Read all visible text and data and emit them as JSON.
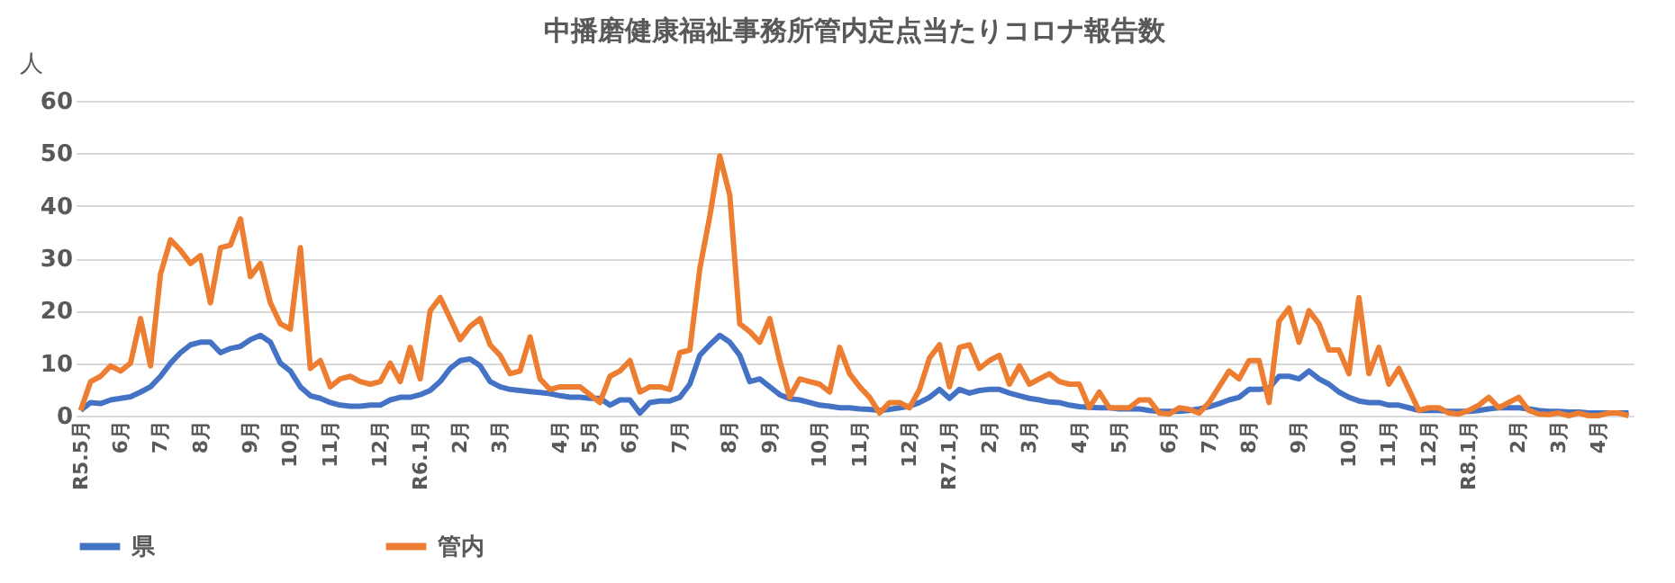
{
  "chart_data": {
    "type": "line",
    "title": "中播磨健康福祉事務所管内定点当たりコロナ報告数",
    "ylabel": "人",
    "categories": [
      "R5.5月",
      null,
      null,
      null,
      "6月",
      null,
      null,
      null,
      "7月",
      null,
      null,
      null,
      "8月",
      null,
      null,
      null,
      null,
      "9月",
      null,
      null,
      null,
      "10月",
      null,
      null,
      null,
      "11月",
      null,
      null,
      null,
      null,
      "12月",
      null,
      null,
      null,
      "R6.1月",
      null,
      null,
      null,
      "2月",
      null,
      null,
      null,
      "3月",
      null,
      null,
      null,
      null,
      null,
      "4月",
      null,
      null,
      "5月",
      null,
      null,
      null,
      "6月",
      null,
      null,
      null,
      null,
      "7月",
      null,
      null,
      null,
      null,
      "8月",
      null,
      null,
      null,
      "9月",
      null,
      null,
      null,
      null,
      "10月",
      null,
      null,
      null,
      "11月",
      null,
      null,
      null,
      null,
      "12月",
      null,
      null,
      null,
      "R7.1月",
      null,
      null,
      null,
      "2月",
      null,
      null,
      null,
      "3月",
      null,
      null,
      null,
      null,
      "4月",
      null,
      null,
      null,
      "5月",
      null,
      null,
      null,
      null,
      "6月",
      null,
      null,
      null,
      "7月",
      null,
      null,
      null,
      "8月",
      null,
      null,
      null,
      null,
      "9月",
      null,
      null,
      null,
      null,
      "10月",
      null,
      null,
      null,
      "11月",
      null,
      null,
      null,
      "12月",
      null,
      null,
      null,
      "R8.1月",
      null,
      null,
      null,
      null,
      "2月",
      null,
      null,
      null,
      "3月",
      null,
      null,
      null,
      "4月",
      null,
      null,
      null
    ],
    "series": [
      {
        "name": "県",
        "color": "#4472c4",
        "values": [
          1,
          2.5,
          2.3,
          3,
          3.3,
          3.6,
          4.5,
          5.5,
          7.5,
          10,
          12,
          13.5,
          14,
          14,
          12,
          12.8,
          13.2,
          14.5,
          15.3,
          14,
          10,
          8.5,
          5.5,
          3.8,
          3.3,
          2.5,
          2,
          1.8,
          1.8,
          2,
          2,
          3,
          3.5,
          3.5,
          4,
          4.8,
          6.5,
          9,
          10.5,
          10.8,
          9.5,
          6.5,
          5.5,
          5,
          4.8,
          4.6,
          4.4,
          4.2,
          3.8,
          3.5,
          3.5,
          3.3,
          3.3,
          2,
          3,
          3,
          0.5,
          2.5,
          2.8,
          2.8,
          3.5,
          6,
          11.5,
          13.5,
          15.3,
          14,
          11.5,
          6.5,
          7,
          5.5,
          4,
          3.2,
          3,
          2.5,
          2,
          1.8,
          1.5,
          1.5,
          1.3,
          1.2,
          1,
          1.2,
          1.5,
          1.8,
          2.5,
          3.5,
          5,
          3.3,
          5,
          4.3,
          4.8,
          5,
          5,
          4.3,
          3.8,
          3.3,
          3,
          2.6,
          2.5,
          2,
          1.7,
          1.6,
          1.5,
          1.5,
          1.3,
          1.3,
          1.3,
          1,
          0.8,
          0.8,
          0.8,
          1,
          1.3,
          1.7,
          2.3,
          3,
          3.5,
          5,
          5,
          5.2,
          7.5,
          7.5,
          7,
          8.5,
          7,
          6,
          4.5,
          3.5,
          2.8,
          2.5,
          2.5,
          2,
          2,
          1.5,
          1,
          1,
          1,
          0.8,
          0.8,
          0.8,
          1,
          1.3,
          1.5,
          1.5,
          1.5,
          1.3,
          1,
          0.8,
          0.8,
          0.7,
          0.7,
          0.5,
          0.5,
          0.5,
          0.5,
          0.5
        ]
      },
      {
        "name": "管内",
        "color": "#ed7d31",
        "values": [
          1,
          6.5,
          7.5,
          9.5,
          8.5,
          10,
          18.5,
          9.5,
          27,
          33.5,
          31.5,
          29,
          30.5,
          21.5,
          32,
          32.5,
          37.5,
          26.5,
          29,
          21.5,
          17.5,
          16.5,
          32,
          9,
          10.5,
          5.5,
          7,
          7.5,
          6.5,
          6,
          6.5,
          10,
          6.5,
          13,
          7,
          20,
          22.5,
          18.5,
          14.5,
          17,
          18.5,
          13.5,
          11.5,
          8,
          8.5,
          15,
          7,
          5,
          5.5,
          5.5,
          5.5,
          4,
          2.5,
          7.5,
          8.5,
          10.5,
          4.5,
          5.5,
          5.5,
          5,
          12,
          12.5,
          28,
          38,
          49.5,
          42,
          17.5,
          16,
          14,
          18.5,
          10.5,
          3.5,
          7,
          6.5,
          6,
          4.5,
          13,
          8,
          5.5,
          3.5,
          0.5,
          2.5,
          2.5,
          1.5,
          5,
          11,
          13.5,
          5.5,
          13,
          13.5,
          9,
          10.5,
          11.5,
          6,
          9.5,
          6,
          7,
          8,
          6.5,
          6,
          6,
          1.5,
          4.5,
          1.5,
          1.5,
          1.5,
          3,
          3,
          0.5,
          0.3,
          1.5,
          1.2,
          0.5,
          2.5,
          5.5,
          8.5,
          7,
          10.5,
          10.5,
          2.5,
          18,
          20.5,
          14,
          20,
          17.5,
          12.5,
          12.5,
          8,
          22.5,
          8,
          13,
          6,
          9,
          5,
          1,
          1.5,
          1.5,
          0.5,
          0.3,
          1,
          2,
          3.5,
          1.5,
          2.5,
          3.5,
          1,
          0.3,
          0.2,
          0.5,
          0,
          0.5,
          0,
          0,
          0.5,
          0.5,
          0
        ]
      }
    ],
    "ylim": [
      0,
      60
    ],
    "yticks": [
      0,
      10,
      20,
      30,
      40,
      50,
      60
    ],
    "grid": "y",
    "legend": "bottom",
    "marker": "none",
    "line_style": "solid"
  }
}
